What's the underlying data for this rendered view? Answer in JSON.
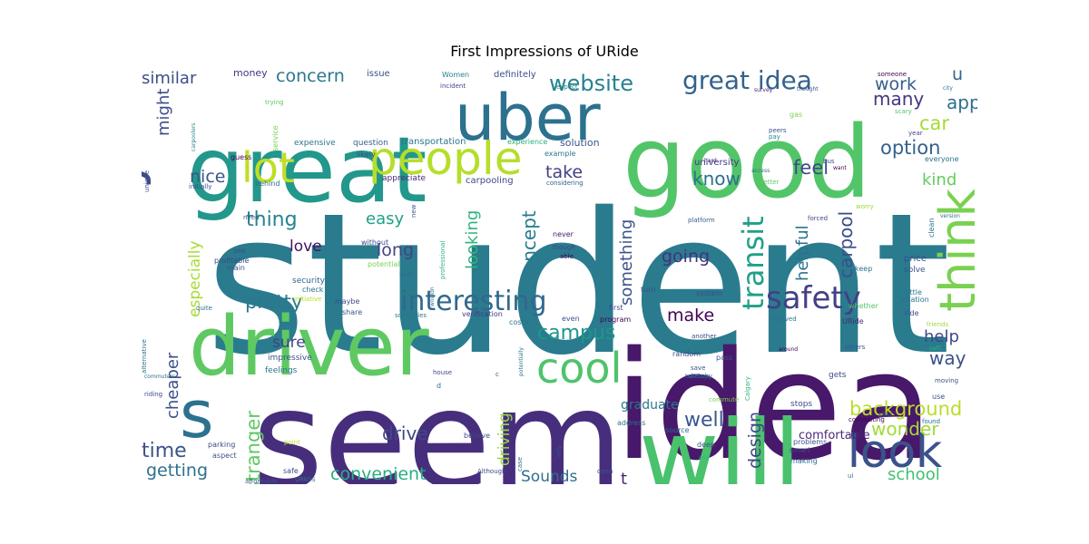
{
  "title": "First Impressions of URide",
  "words": [
    {
      "text": "student",
      "color": "#2a7b8e"
    },
    {
      "text": "idea",
      "color": "#48186a"
    },
    {
      "text": "seem",
      "color": "#472e7c"
    },
    {
      "text": "good",
      "color": "#52c569"
    },
    {
      "text": "great",
      "color": "#22978b"
    },
    {
      "text": "driver",
      "color": "#5ec962"
    },
    {
      "text": "will",
      "color": "#4ac16d"
    },
    {
      "text": "uber",
      "color": "#2c718e"
    },
    {
      "text": "look",
      "color": "#3b528b"
    },
    {
      "text": "really",
      "color": "#3e4a89"
    },
    {
      "text": "think",
      "color": "#7ad151"
    },
    {
      "text": "people",
      "color": "#b5de2b"
    },
    {
      "text": "s",
      "color": "#2c728e"
    },
    {
      "text": "cool",
      "color": "#4ec36b"
    },
    {
      "text": "lot",
      "color": "#bddf26"
    },
    {
      "text": "safety",
      "color": "#424086"
    },
    {
      "text": "interesting",
      "color": "#31688e"
    },
    {
      "text": "website",
      "color": "#26828e"
    },
    {
      "text": "great idea",
      "color": "#33638d"
    },
    {
      "text": "transit",
      "color": "#1fa088"
    },
    {
      "text": "background",
      "color": "#b8de29"
    },
    {
      "text": "look",
      "color": "#3b528b"
    },
    {
      "text": "campus",
      "color": "#1f968b"
    },
    {
      "text": "similar",
      "color": "#3d4e8a"
    },
    {
      "text": "concern",
      "color": "#2a788e"
    },
    {
      "text": "work",
      "color": "#365c8d"
    },
    {
      "text": "app",
      "color": "#2d708e"
    },
    {
      "text": "u",
      "color": "#33638d"
    },
    {
      "text": "car",
      "color": "#a5db36"
    },
    {
      "text": "many",
      "color": "#453781"
    },
    {
      "text": "option",
      "color": "#34618d"
    },
    {
      "text": "might",
      "color": "#3e4c8a"
    },
    {
      "text": "nice",
      "color": "#3a548c"
    },
    {
      "text": "feel",
      "color": "#3e4989"
    },
    {
      "text": "kind",
      "color": "#65cb5e"
    },
    {
      "text": "know",
      "color": "#2c718e"
    },
    {
      "text": "take",
      "color": "#433e85"
    },
    {
      "text": "thing",
      "color": "#25848e"
    },
    {
      "text": "easy",
      "color": "#1fa187"
    },
    {
      "text": "concept",
      "color": "#287d8e"
    },
    {
      "text": "looking",
      "color": "#2eb37c"
    },
    {
      "text": "something",
      "color": "#3b528b"
    },
    {
      "text": "helpful",
      "color": "#2c728e"
    },
    {
      "text": "carpool",
      "color": "#3c4f8a"
    },
    {
      "text": "love",
      "color": "#471063"
    },
    {
      "text": "long",
      "color": "#404588"
    },
    {
      "text": "going",
      "color": "#46307e"
    },
    {
      "text": "especially",
      "color": "#a8db34"
    },
    {
      "text": "pretty",
      "color": "#2a788e"
    },
    {
      "text": "make",
      "color": "#440154"
    },
    {
      "text": "help",
      "color": "#3f4788"
    },
    {
      "text": "way",
      "color": "#3b528b"
    },
    {
      "text": "sure",
      "color": "#424186"
    },
    {
      "text": "cheaper",
      "color": "#3c508b"
    },
    {
      "text": "stranger",
      "color": "#5ec962"
    },
    {
      "text": "driving",
      "color": "#95d840"
    },
    {
      "text": "well",
      "color": "#38598c"
    },
    {
      "text": "wonder",
      "color": "#a2da37"
    },
    {
      "text": "drive",
      "color": "#3e4989"
    },
    {
      "text": "design",
      "color": "#414487"
    },
    {
      "text": "time",
      "color": "#3b528b"
    },
    {
      "text": "getting",
      "color": "#2d708e"
    },
    {
      "text": "convenient",
      "color": "#29af7f"
    },
    {
      "text": "Sounds",
      "color": "#2e6e8e"
    },
    {
      "text": "t",
      "color": "#482475"
    },
    {
      "text": "school",
      "color": "#42be71"
    },
    {
      "text": "graduate",
      "color": "#2a788e"
    },
    {
      "text": "comfortable",
      "color": "#482878"
    },
    {
      "text": "money",
      "color": "#46337f"
    },
    {
      "text": "issue",
      "color": "#3b528b"
    },
    {
      "text": "Women",
      "color": "#26828e"
    },
    {
      "text": "definitely",
      "color": "#3d4e8a"
    },
    {
      "text": "incident",
      "color": "#3f4889"
    },
    {
      "text": "expect",
      "color": "#24878e"
    },
    {
      "text": "survey",
      "color": "#482173"
    },
    {
      "text": "thought",
      "color": "#3b528b"
    },
    {
      "text": "someone",
      "color": "#440154"
    },
    {
      "text": "city",
      "color": "#2a788e"
    },
    {
      "text": "trying",
      "color": "#5ec962"
    },
    {
      "text": "service",
      "color": "#7ad151"
    },
    {
      "text": "carpoolers",
      "color": "#25858e"
    },
    {
      "text": "expensive",
      "color": "#2c728e"
    },
    {
      "text": "question",
      "color": "#33638d"
    },
    {
      "text": "transportation",
      "color": "#2b758e"
    },
    {
      "text": "experience",
      "color": "#29af7f"
    },
    {
      "text": "solution",
      "color": "#3b528b"
    },
    {
      "text": "example",
      "color": "#2a788e"
    },
    {
      "text": "guess",
      "color": "#440154"
    },
    {
      "text": "likely",
      "color": "#3e4989"
    },
    {
      "text": "peers",
      "color": "#3b528b"
    },
    {
      "text": "pay",
      "color": "#24868e"
    },
    {
      "text": "gas",
      "color": "#7ad151"
    },
    {
      "text": "scary",
      "color": "#52c569"
    },
    {
      "text": "year",
      "color": "#3f4889"
    },
    {
      "text": "everyone",
      "color": "#2c728e"
    },
    {
      "text": "unique",
      "color": "#3b528b"
    },
    {
      "text": "initially",
      "color": "#3e4989"
    },
    {
      "text": "behind",
      "color": "#2e6e8e"
    },
    {
      "text": "appreciate",
      "color": "#482878"
    },
    {
      "text": "carpooling",
      "color": "#3e4a89"
    },
    {
      "text": "university",
      "color": "#453882"
    },
    {
      "text": "hard",
      "color": "#46337f"
    },
    {
      "text": "bus",
      "color": "#3e4a89"
    },
    {
      "text": "access",
      "color": "#2c718e"
    },
    {
      "text": "considering",
      "color": "#33638d"
    },
    {
      "text": "better",
      "color": "#5ec962"
    },
    {
      "text": "want",
      "color": "#440154"
    },
    {
      "text": "worry",
      "color": "#a0da39"
    },
    {
      "text": "need",
      "color": "#3b528b"
    },
    {
      "text": "new",
      "color": "#38598c"
    },
    {
      "text": "without",
      "color": "#3e4a89"
    },
    {
      "text": "professional",
      "color": "#2eb37c"
    },
    {
      "text": "never",
      "color": "#48186a"
    },
    {
      "text": "forced",
      "color": "#3e4a89"
    },
    {
      "text": "platform",
      "color": "#34618d"
    },
    {
      "text": "version",
      "color": "#2c728e"
    },
    {
      "text": "clean",
      "color": "#2c718e"
    },
    {
      "text": "price",
      "color": "#3e4a89"
    },
    {
      "text": "see",
      "color": "#3b528b"
    },
    {
      "text": "profitable",
      "color": "#3e4989"
    },
    {
      "text": "main",
      "color": "#3b528b"
    },
    {
      "text": "potential",
      "color": "#7ad151"
    },
    {
      "text": "though",
      "color": "#3e4989"
    },
    {
      "text": "able",
      "color": "#440154"
    },
    {
      "text": "built",
      "color": "#2e6e8e"
    },
    {
      "text": "keep",
      "color": "#2c728e"
    },
    {
      "text": "solve",
      "color": "#3b528b"
    },
    {
      "text": "little",
      "color": "#2a788e"
    },
    {
      "text": "check",
      "color": "#2c728e"
    },
    {
      "text": "security",
      "color": "#33638d"
    },
    {
      "text": "initiative",
      "color": "#b8de29"
    },
    {
      "text": "wouldn",
      "color": "#2e6e8e"
    },
    {
      "text": "whether",
      "color": "#52c569"
    },
    {
      "text": "system",
      "color": "#3e4a89"
    },
    {
      "text": "turn",
      "color": "#3b528b"
    },
    {
      "text": "location",
      "color": "#2c718e"
    },
    {
      "text": "first",
      "color": "#3e4989"
    },
    {
      "text": "program",
      "color": "#440154"
    },
    {
      "text": "quite",
      "color": "#2c728e"
    },
    {
      "text": "maybe",
      "color": "#3e4a89"
    },
    {
      "text": "share",
      "color": "#3b528b"
    },
    {
      "text": "schedules",
      "color": "#2a788e"
    },
    {
      "text": "verification",
      "color": "#453882"
    },
    {
      "text": "even",
      "color": "#3b528b"
    },
    {
      "text": "involved",
      "color": "#2c728e"
    },
    {
      "text": "URide",
      "color": "#482878"
    },
    {
      "text": "ride",
      "color": "#3e4a89"
    },
    {
      "text": "friends",
      "color": "#a0da39"
    },
    {
      "text": "alternative",
      "color": "#2c718e"
    },
    {
      "text": "another",
      "color": "#3e4989"
    },
    {
      "text": "around",
      "color": "#440154"
    },
    {
      "text": "others",
      "color": "#3b528b"
    },
    {
      "text": "pafC",
      "color": "#2eb37c"
    },
    {
      "text": "impressive",
      "color": "#3b528b"
    },
    {
      "text": "costs",
      "color": "#2c728e"
    },
    {
      "text": "random",
      "color": "#3e4a89"
    },
    {
      "text": "pass",
      "color": "#3b528b"
    },
    {
      "text": "feelings",
      "color": "#2c728e"
    },
    {
      "text": "house",
      "color": "#3e4a89"
    },
    {
      "text": "c",
      "color": "#3b528b"
    },
    {
      "text": "potentially",
      "color": "#2a788e"
    },
    {
      "text": "buildings",
      "color": "#3b528b"
    },
    {
      "text": "sketchy",
      "color": "#2c728e"
    },
    {
      "text": "gets",
      "color": "#3e4989"
    },
    {
      "text": "moving",
      "color": "#3b528b"
    },
    {
      "text": "commuters",
      "color": "#2c728e"
    },
    {
      "text": "riding",
      "color": "#3e4a89"
    },
    {
      "text": "d",
      "color": "#2c718e"
    },
    {
      "text": "save",
      "color": "#3b528b"
    },
    {
      "text": "commute",
      "color": "#7ad151"
    },
    {
      "text": "Calgary",
      "color": "#2eb37c"
    },
    {
      "text": "use",
      "color": "#3b528b"
    },
    {
      "text": "stops",
      "color": "#3e4a89"
    },
    {
      "text": "address",
      "color": "#2c728e"
    },
    {
      "text": "star",
      "color": "#3b528b"
    },
    {
      "text": "commuting",
      "color": "#440154"
    },
    {
      "text": "found",
      "color": "#2c718e"
    },
    {
      "text": "parking",
      "color": "#3e4989"
    },
    {
      "text": "aspect",
      "color": "#3b528b"
    },
    {
      "text": "point",
      "color": "#b8de29"
    },
    {
      "text": "believe",
      "color": "#3e4a89"
    },
    {
      "text": "source",
      "color": "#2c728e"
    },
    {
      "text": "problems",
      "color": "#3b528b"
    },
    {
      "text": "smart",
      "color": "#3e4989"
    },
    {
      "text": "making",
      "color": "#2c718e"
    },
    {
      "text": "deep",
      "color": "#3b528b"
    },
    {
      "text": "end",
      "color": "#2eb37c"
    },
    {
      "text": "rely",
      "color": "#3b528b"
    },
    {
      "text": "case",
      "color": "#2c728e"
    },
    {
      "text": "safe",
      "color": "#3e4a89"
    },
    {
      "text": "affordable",
      "color": "#3b528b"
    },
    {
      "text": "UPASS",
      "color": "#2c728e"
    },
    {
      "text": "Although",
      "color": "#3e4a89"
    },
    {
      "text": "open",
      "color": "#3b528b"
    },
    {
      "text": "ui",
      "color": "#2c728e"
    }
  ]
}
